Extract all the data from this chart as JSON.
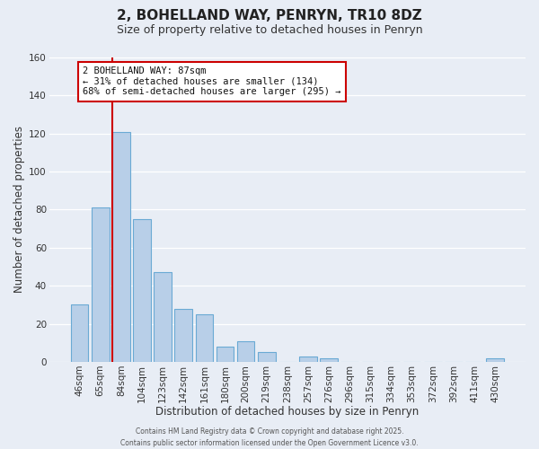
{
  "title": "2, BOHELLAND WAY, PENRYN, TR10 8DZ",
  "subtitle": "Size of property relative to detached houses in Penryn",
  "xlabel": "Distribution of detached houses by size in Penryn",
  "ylabel": "Number of detached properties",
  "categories": [
    "46sqm",
    "65sqm",
    "84sqm",
    "104sqm",
    "123sqm",
    "142sqm",
    "161sqm",
    "180sqm",
    "200sqm",
    "219sqm",
    "238sqm",
    "257sqm",
    "276sqm",
    "296sqm",
    "315sqm",
    "334sqm",
    "353sqm",
    "372sqm",
    "392sqm",
    "411sqm",
    "430sqm"
  ],
  "values": [
    30,
    81,
    121,
    75,
    47,
    28,
    25,
    8,
    11,
    5,
    0,
    3,
    2,
    0,
    0,
    0,
    0,
    0,
    0,
    0,
    2
  ],
  "bar_color": "#b8cfe8",
  "bar_edge_color": "#6aaad4",
  "background_color": "#e8edf5",
  "grid_color": "#ffffff",
  "vline_color": "#cc0000",
  "vline_index": 2,
  "ylim": [
    0,
    160
  ],
  "yticks": [
    0,
    20,
    40,
    60,
    80,
    100,
    120,
    140,
    160
  ],
  "annotation_title": "2 BOHELLAND WAY: 87sqm",
  "annotation_line1": "← 31% of detached houses are smaller (134)",
  "annotation_line2": "68% of semi-detached houses are larger (295) →",
  "annotation_box_facecolor": "#ffffff",
  "annotation_box_edgecolor": "#cc0000",
  "footer1": "Contains HM Land Registry data © Crown copyright and database right 2025.",
  "footer2": "Contains public sector information licensed under the Open Government Licence v3.0.",
  "title_fontsize": 11,
  "subtitle_fontsize": 9,
  "xlabel_fontsize": 8.5,
  "ylabel_fontsize": 8.5,
  "tick_fontsize": 7.5,
  "annotation_fontsize": 7.5,
  "footer_fontsize": 5.5
}
